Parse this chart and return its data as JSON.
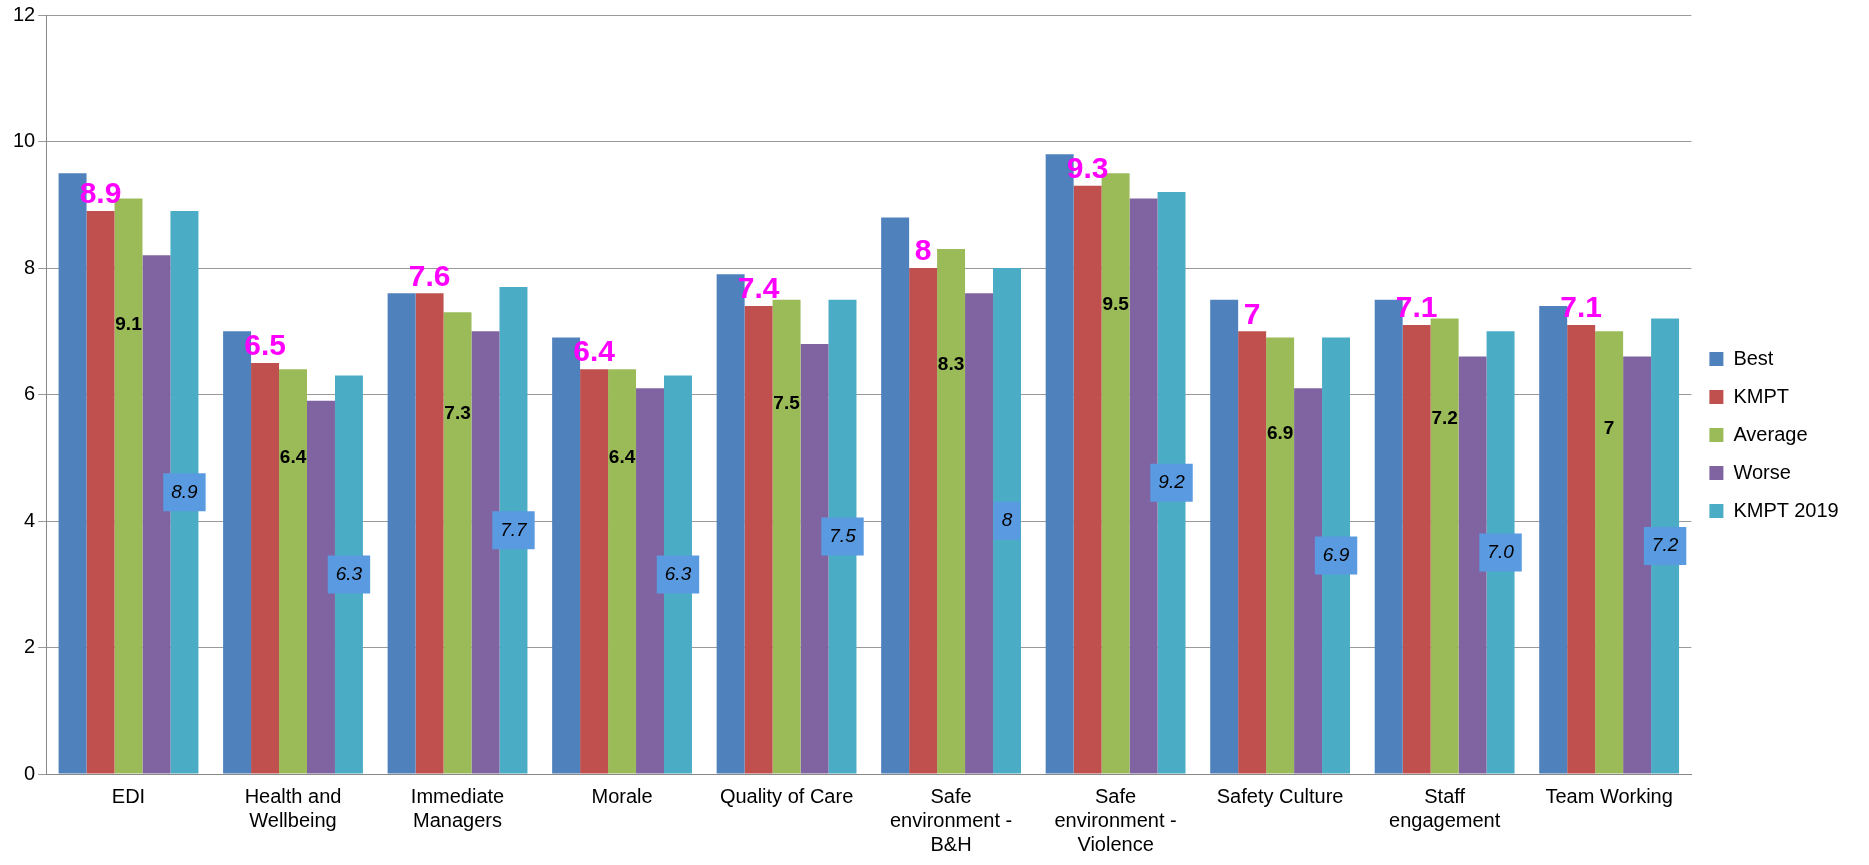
{
  "chart_data": {
    "type": "bar",
    "categories": [
      "EDI",
      "Health and Wellbeing",
      "Immediate Managers",
      "Morale",
      "Quality of Care",
      "Safe environment - B&H",
      "Safe environment - Violence",
      "Safety Culture",
      "Staff engagement",
      "Team Working"
    ],
    "series": [
      {
        "name": "Best",
        "color": "#4f81bd",
        "values": [
          9.5,
          7.0,
          7.6,
          6.9,
          7.9,
          8.8,
          9.8,
          7.5,
          7.5,
          7.4
        ]
      },
      {
        "name": "KMPT",
        "color": "#c0504d",
        "values": [
          8.9,
          6.5,
          7.6,
          6.4,
          7.4,
          8.0,
          9.3,
          7.0,
          7.1,
          7.1
        ],
        "value_labels": [
          "8.9",
          "6.5",
          "7.6",
          "6.4",
          "7.4",
          "8",
          "9.3",
          "7",
          "7.1",
          "7.1"
        ]
      },
      {
        "name": "Average",
        "color": "#9bbb59",
        "values": [
          9.1,
          6.4,
          7.3,
          6.4,
          7.5,
          8.3,
          9.5,
          6.9,
          7.2,
          7.0
        ],
        "value_labels": [
          "9.1",
          "6.4",
          "7.3",
          "6.4",
          "7.5",
          "8.3",
          "9.5",
          "6.9",
          "7.2",
          "7"
        ]
      },
      {
        "name": "Worse",
        "color": "#8064a2",
        "values": [
          8.2,
          5.9,
          7.0,
          6.1,
          6.8,
          7.6,
          9.1,
          6.1,
          6.6,
          6.6
        ]
      },
      {
        "name": "KMPT 2019",
        "color": "#4bacc6",
        "values": [
          8.9,
          6.3,
          7.7,
          6.3,
          7.5,
          8.0,
          9.2,
          6.9,
          7.0,
          7.2
        ],
        "value_labels": [
          "8.9",
          "6.3",
          "7.7",
          "6.3",
          "7.5",
          "8",
          "9.2",
          "6.9",
          "7.0",
          "7.2"
        ]
      }
    ],
    "ylim": [
      0,
      12
    ],
    "yticks": [
      0,
      2,
      4,
      6,
      8,
      10,
      12
    ],
    "grid": "y",
    "legend": "right"
  }
}
